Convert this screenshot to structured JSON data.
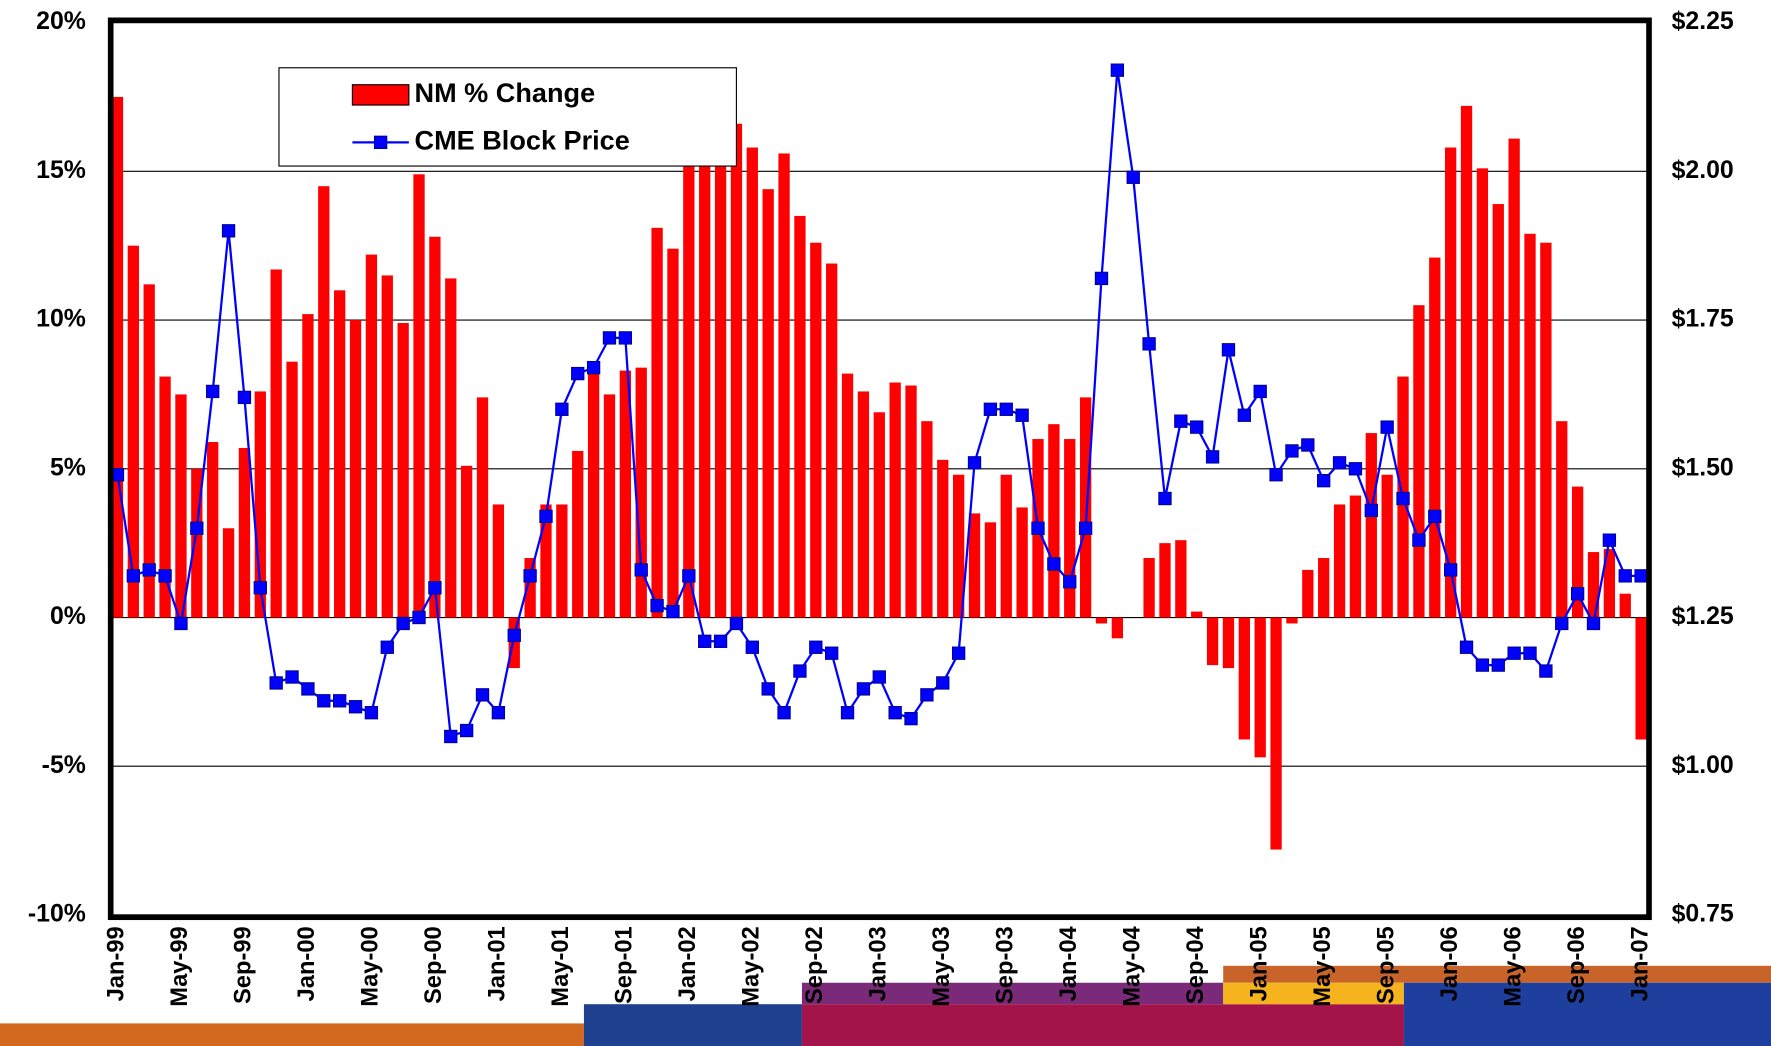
{
  "chart_data": {
    "type": "bar",
    "categories": [
      "Jan-99",
      null,
      null,
      null,
      "May-99",
      null,
      null,
      null,
      "Sep-99",
      null,
      null,
      null,
      "Jan-00",
      null,
      null,
      null,
      "May-00",
      null,
      null,
      null,
      "Sep-00",
      null,
      null,
      null,
      "Jan-01",
      null,
      null,
      null,
      "May-01",
      null,
      null,
      null,
      "Sep-01",
      null,
      null,
      null,
      "Jan-02",
      null,
      null,
      null,
      "May-02",
      null,
      null,
      null,
      "Sep-02",
      null,
      null,
      null,
      "Jan-03",
      null,
      null,
      null,
      "May-03",
      null,
      null,
      null,
      "Sep-03",
      null,
      null,
      null,
      "Jan-04",
      null,
      null,
      null,
      "May-04",
      null,
      null,
      null,
      "Sep-04",
      null,
      null,
      null,
      "Jan-05",
      null,
      null,
      null,
      "May-05",
      null,
      null,
      null,
      "Sep-05",
      null,
      null,
      null,
      "Jan-06",
      null,
      null,
      null,
      "May-06",
      null,
      null,
      null,
      "Sep-06",
      null,
      null,
      null,
      "Jan-07"
    ],
    "series": [
      {
        "name": "NM % Change",
        "type": "bar",
        "color": "#ff0000",
        "values": [
          17.5,
          12.5,
          11.2,
          8.1,
          7.5,
          5.0,
          5.9,
          3.0,
          5.7,
          7.6,
          11.7,
          8.6,
          10.2,
          14.5,
          11.0,
          10.0,
          12.2,
          11.5,
          9.9,
          14.9,
          12.8,
          11.4,
          5.1,
          7.4,
          3.8,
          -1.7,
          2.0,
          3.8,
          3.8,
          5.6,
          8.6,
          7.5,
          8.3,
          8.4,
          13.1,
          12.4,
          15.9,
          16.4,
          16.2,
          16.6,
          15.8,
          14.4,
          15.6,
          13.5,
          12.6,
          11.9,
          8.2,
          7.6,
          6.9,
          7.9,
          7.8,
          6.6,
          5.3,
          4.8,
          3.5,
          3.2,
          4.8,
          3.7,
          6.0,
          6.5,
          6.0,
          7.4,
          -0.2,
          -0.7,
          0,
          2.0,
          2.5,
          2.6,
          0.2,
          -1.6,
          -1.7,
          -4.1,
          -4.7,
          -7.8,
          -0.2,
          1.6,
          2.0,
          3.8,
          4.1,
          6.2,
          4.8,
          8.1,
          10.5,
          12.1,
          15.8,
          17.2,
          15.1,
          13.9,
          16.1,
          12.9,
          12.6,
          6.6,
          4.4,
          2.2,
          2.3,
          0.8,
          -4.1
        ]
      },
      {
        "name": "CME Block Price",
        "type": "line",
        "axis": "y2",
        "color": "#0000ff",
        "values": [
          1.49,
          1.32,
          1.33,
          1.32,
          1.24,
          1.4,
          1.63,
          1.9,
          1.62,
          1.3,
          1.14,
          1.15,
          1.13,
          1.11,
          1.11,
          1.1,
          1.09,
          1.2,
          1.24,
          1.25,
          1.3,
          1.05,
          1.06,
          1.12,
          1.09,
          1.22,
          1.32,
          1.42,
          1.6,
          1.66,
          1.67,
          1.72,
          1.72,
          1.33,
          1.27,
          1.26,
          1.32,
          1.21,
          1.21,
          1.24,
          1.2,
          1.13,
          1.09,
          1.16,
          1.2,
          1.19,
          1.09,
          1.13,
          1.15,
          1.09,
          1.08,
          1.12,
          1.14,
          1.19,
          1.51,
          1.6,
          1.6,
          1.59,
          1.4,
          1.34,
          1.31,
          1.4,
          1.82,
          2.17,
          1.99,
          1.71,
          1.45,
          1.58,
          1.57,
          1.52,
          1.7,
          1.59,
          1.63,
          1.49,
          1.53,
          1.54,
          1.48,
          1.51,
          1.5,
          1.43,
          1.57,
          1.45,
          1.38,
          1.42,
          1.33,
          1.2,
          1.17,
          1.17,
          1.19,
          1.19,
          1.16,
          1.24,
          1.29,
          1.24,
          1.38,
          1.32,
          1.32
        ]
      }
    ],
    "ylim": [
      -10,
      20
    ],
    "yticks": [
      {
        "value": -10,
        "label": "-10%"
      },
      {
        "value": -5,
        "label": "-5%"
      },
      {
        "value": 0,
        "label": "0%"
      },
      {
        "value": 5,
        "label": "5%"
      },
      {
        "value": 10,
        "label": "10%"
      },
      {
        "value": 15,
        "label": "15%"
      },
      {
        "value": 20,
        "label": "20%"
      }
    ],
    "y2lim": [
      0.75,
      2.25
    ],
    "y2ticks": [
      {
        "value": 0.75,
        "label": "$0.75"
      },
      {
        "value": 1.0,
        "label": "$1.00"
      },
      {
        "value": 1.25,
        "label": "$1.25"
      },
      {
        "value": 1.5,
        "label": "$1.50"
      },
      {
        "value": 1.75,
        "label": "$1.75"
      },
      {
        "value": 2.0,
        "label": "$2.00"
      },
      {
        "value": 2.25,
        "label": "$2.25"
      }
    ],
    "grid": true,
    "legend": "top-left"
  }
}
